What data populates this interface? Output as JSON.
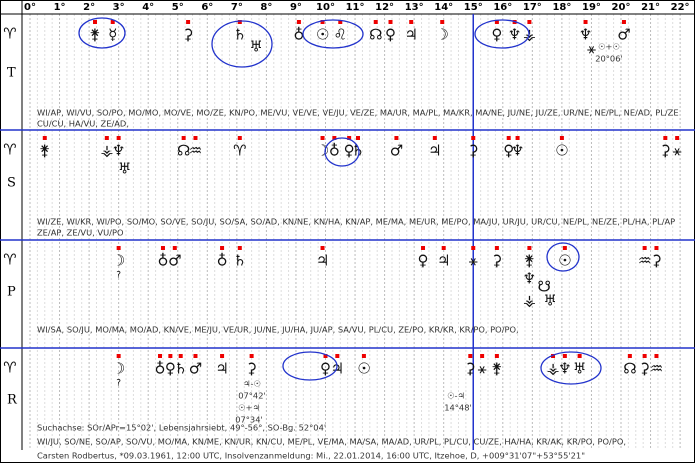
{
  "ruler": [
    "0°",
    "1°",
    "2°",
    "3°",
    "4°",
    "5°",
    "6°",
    "7°",
    "8°",
    "9°",
    "10°",
    "11°",
    "12°",
    "13°",
    "14°",
    "15°",
    "16°",
    "17°",
    "18°",
    "19°",
    "20°",
    "21°",
    "22°"
  ],
  "rows": [
    {
      "marker": "♈",
      "label": "T",
      "glyphs": [
        "⚵",
        "☿",
        "⚳",
        "♄",
        "♅",
        "♁",
        "☉",
        "♌",
        "☊",
        "♀",
        "♃",
        "☽",
        "♀",
        "♆",
        "⚶",
        "♆",
        "⚹",
        "♂"
      ],
      "lines": [
        "WI/AP, WI/VU, SO/PO, MO/MO, MO/VE, MO/ZE, KN/PO, ME/VU, VE/VE, VE/JU, VE/ZE, MA/UR, MA/PL, MA/KR, MA/NE, JU/NE, JU/ZE, UR/NE, NE/PL, NE/AD, PL/ZE",
        "CU/CU, HA/VU, ZE/AD,"
      ]
    },
    {
      "marker": "♈",
      "label": "S",
      "glyphs": [
        "⚵",
        "⚶",
        "♆",
        "♅",
        "☊",
        "♒",
        "♈",
        "☽",
        "♁",
        "♀",
        "♄",
        "♂",
        "♃",
        "⚳",
        "♀",
        "♆",
        "☉",
        "⚳",
        "⚹"
      ],
      "lines": [
        "WI/ZE, WI/KR, WI/PO, SO/MO, SO/VE, SO/JU, SO/SA, SO/AD, KN/NE, KN/HA, KN/AP, ME/MA, ME/UR, ME/PO, MA/JU, UR/JU, UR/CU, NE/PL, NE/ZE, PL/HA, PL/AP",
        "ZE/AP, ZE/VU, VU/PO"
      ]
    },
    {
      "marker": "♈",
      "label": "P",
      "glyphs": [
        "☽",
        "?",
        "♁",
        "♂",
        "♁",
        "♄",
        "♃",
        "♀",
        "♃",
        "⚹",
        "⚳",
        "⚵",
        "♆",
        "☋",
        "⚶",
        "♅",
        "☉",
        "♒",
        "⚳"
      ],
      "lines": [
        "WI/SA, SO/JU, MO/MA, MO/AD, KN/VE, ME/JU, VE/UR, JU/NE, JU/HA, JU/AP, SA/VU, PL/CU, ZE/PO, KR/KR, KR/PO, PO/PO,"
      ]
    },
    {
      "marker": "♈",
      "label": "R",
      "glyphs": [
        "☽",
        "?",
        "♁",
        "♀",
        "♄",
        "♂",
        "♃",
        "⚳",
        "♀",
        "♃",
        "☉",
        "⚳",
        "⚹",
        "⚵",
        "⚶",
        "♆",
        "♅",
        "☊",
        "⚳",
        "♒"
      ],
      "lines": [
        "WI/JU, SO/NE, SO/AP, SO/VU, MO/MA, KN/ME, KN/UR, KN/CU, ME/PL, VE/MA, MA/SA, MA/AD, UR/PL, PL/CU, CU/ZE, HA/HA, KR/AK, KR/PO, PO/PO,"
      ]
    }
  ],
  "annotations": [
    "☉+☉",
    "20°06'",
    "♃-☉",
    "07°42'",
    "☉+♃",
    "07°34'",
    "☉-♃",
    "14°48'"
  ],
  "search_axis": "Suchachse: SOr/APr=15°02', Lebensjahrsiebt, 49°-56°, SO-Bg. 52°04'",
  "footer": "Carsten Rodbertus, *09.03.1961, 12:00 UTC, Insolvenzanmeldung: Mi., 22.01.2014, 16:00 UTC, Itzehoe, D, +009°31'07\"+53°55'21\""
}
